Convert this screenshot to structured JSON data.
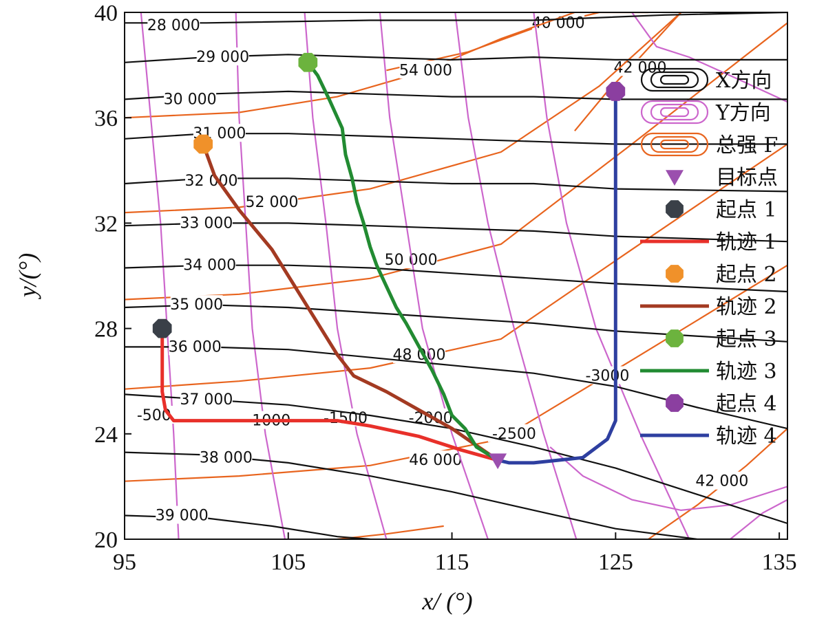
{
  "chart_data": {
    "type": "line",
    "title": "",
    "xlabel": "x/ (°)",
    "ylabel": "y/(°)",
    "xlim": [
      95,
      135.5
    ],
    "ylim": [
      20,
      40
    ],
    "xticks": [
      95,
      105,
      115,
      125,
      135
    ],
    "xtick_labels": [
      "95",
      "105",
      "115",
      "125",
      "135"
    ],
    "yticks": [
      20,
      24,
      28,
      32,
      36,
      40
    ],
    "ytick_labels": [
      "20",
      "24",
      "28",
      "32",
      "36",
      "40"
    ],
    "grid": false,
    "legend_position": "right",
    "legend": [
      {
        "label": "X方向",
        "kind": "contour",
        "color": "#111111"
      },
      {
        "label": "Y方向",
        "kind": "contour",
        "color": "#cc66cc"
      },
      {
        "label": "总强 F",
        "kind": "contour",
        "color": "#e8641e"
      },
      {
        "label": "目标点",
        "kind": "triangle",
        "color": "#9b4fae"
      },
      {
        "label": "起点 1",
        "kind": "marker",
        "color": "#3a4048"
      },
      {
        "label": "轨迹 1",
        "kind": "line",
        "color": "#e8302a"
      },
      {
        "label": "起点 2",
        "kind": "marker",
        "color": "#f0912a"
      },
      {
        "label": "轨迹 2",
        "kind": "line",
        "color": "#a33a22"
      },
      {
        "label": "起点 3",
        "kind": "marker",
        "color": "#6cb33e"
      },
      {
        "label": "轨迹 3",
        "kind": "line",
        "color": "#228b32"
      },
      {
        "label": "起点 4",
        "kind": "marker",
        "color": "#8b3fa0"
      },
      {
        "label": "轨迹 4",
        "kind": "line",
        "color": "#2e3fa0"
      }
    ],
    "target_point": {
      "x": 117.8,
      "y": 23.0
    },
    "start_points": [
      {
        "name": "起点 1",
        "x": 97.3,
        "y": 28.0,
        "color": "#3a4048"
      },
      {
        "name": "起点 2",
        "x": 99.8,
        "y": 35.0,
        "color": "#f0912a"
      },
      {
        "name": "起点 3",
        "x": 106.2,
        "y": 38.1,
        "color": "#6cb33e"
      },
      {
        "name": "起点 4",
        "x": 125.0,
        "y": 37.0,
        "color": "#8b3fa0"
      }
    ],
    "trajectories": [
      {
        "name": "轨迹 1",
        "color": "#e8302a",
        "x": [
          97.3,
          97.3,
          97.5,
          98.0,
          108.0,
          110.0,
          113.0,
          115.5,
          117.8
        ],
        "y": [
          28.0,
          25.6,
          24.9,
          24.5,
          24.5,
          24.3,
          23.9,
          23.4,
          23.0
        ]
      },
      {
        "name": "轨迹 2",
        "color": "#a33a22",
        "x": [
          99.8,
          100.5,
          102.0,
          104.0,
          106.0,
          108.0,
          109.0,
          111.0,
          113.0,
          115.0,
          117.8
        ],
        "y": [
          35.0,
          33.8,
          32.5,
          31.0,
          29.0,
          27.0,
          26.2,
          25.6,
          24.9,
          24.2,
          23.0
        ]
      },
      {
        "name": "轨迹 3",
        "color": "#228b32",
        "x": [
          106.2,
          106.8,
          107.5,
          108.3,
          108.5,
          108.9,
          109.2,
          109.6,
          110.0,
          110.4,
          111.0,
          111.6,
          112.2,
          113.0,
          113.8,
          114.5,
          115.0,
          115.8,
          116.5,
          117.8
        ],
        "y": [
          38.1,
          37.6,
          36.7,
          35.6,
          34.6,
          33.7,
          32.8,
          32.0,
          31.1,
          30.4,
          29.6,
          28.8,
          28.2,
          27.3,
          26.4,
          25.5,
          24.7,
          24.2,
          23.5,
          23.0
        ]
      },
      {
        "name": "轨迹 4",
        "color": "#2e3fa0",
        "x": [
          125.0,
          125.0,
          125.0,
          124.5,
          123.0,
          121.5,
          120.0,
          118.5,
          117.8
        ],
        "y": [
          37.0,
          30.0,
          24.5,
          23.8,
          23.1,
          23.0,
          22.9,
          22.9,
          23.0
        ]
      }
    ],
    "x_contours": [
      {
        "label": "28 000",
        "level": 28000,
        "label_at": {
          "x": 98.0,
          "y": 39.5
        },
        "x": [
          95,
          100,
          110,
          120,
          128,
          135.5
        ],
        "y": [
          39.6,
          39.6,
          39.7,
          39.7,
          39.9,
          40.0
        ]
      },
      {
        "label": "29 000",
        "level": 29000,
        "label_at": {
          "x": 101.0,
          "y": 38.3
        },
        "x": [
          95,
          100,
          105,
          110,
          115,
          120,
          125,
          135.5
        ],
        "y": [
          38.1,
          38.3,
          38.4,
          38.3,
          38.2,
          38.3,
          38.2,
          38.2
        ]
      },
      {
        "label": "30 000",
        "level": 30000,
        "label_at": {
          "x": 99.0,
          "y": 36.7
        },
        "x": [
          95,
          100,
          105,
          110,
          115,
          120,
          125,
          135.5
        ],
        "y": [
          36.7,
          36.9,
          37.0,
          36.9,
          36.8,
          36.8,
          36.7,
          36.7
        ]
      },
      {
        "label": "31 000",
        "level": 31000,
        "label_at": {
          "x": 100.8,
          "y": 35.4
        },
        "x": [
          95,
          100,
          105,
          110,
          115,
          120,
          125,
          135.5
        ],
        "y": [
          35.2,
          35.4,
          35.4,
          35.3,
          35.2,
          35.1,
          35.0,
          35.0
        ]
      },
      {
        "label": "32 000",
        "level": 32000,
        "label_at": {
          "x": 100.3,
          "y": 33.6
        },
        "x": [
          95,
          100,
          105,
          110,
          115,
          120,
          125,
          135.5
        ],
        "y": [
          33.5,
          33.7,
          33.7,
          33.6,
          33.5,
          33.5,
          33.3,
          33.2
        ]
      },
      {
        "label": "33 000",
        "level": 33000,
        "label_at": {
          "x": 100.0,
          "y": 32.0
        },
        "x": [
          95,
          100,
          105,
          110,
          115,
          120,
          125,
          135.5
        ],
        "y": [
          31.9,
          32.0,
          32.0,
          31.9,
          31.8,
          31.7,
          31.5,
          31.3
        ]
      },
      {
        "label": "34 000",
        "level": 34000,
        "label_at": {
          "x": 100.2,
          "y": 30.4
        },
        "x": [
          95,
          100,
          105,
          110,
          115,
          120,
          125,
          135.5
        ],
        "y": [
          30.3,
          30.4,
          30.4,
          30.3,
          30.1,
          29.9,
          29.7,
          29.4
        ]
      },
      {
        "label": "35 000",
        "level": 35000,
        "label_at": {
          "x": 99.4,
          "y": 28.9
        },
        "x": [
          95,
          100,
          105,
          110,
          115,
          120,
          125,
          135.5
        ],
        "y": [
          28.8,
          28.9,
          28.8,
          28.6,
          28.4,
          28.2,
          27.9,
          27.5
        ]
      },
      {
        "label": "36 000",
        "level": 36000,
        "label_at": {
          "x": 99.3,
          "y": 27.3
        },
        "x": [
          95,
          100,
          105,
          110,
          115,
          120,
          125,
          130,
          135.5
        ],
        "y": [
          27.3,
          27.3,
          27.2,
          26.9,
          26.6,
          26.3,
          25.8,
          25.0,
          24.2
        ]
      },
      {
        "label": "37 000",
        "level": 37000,
        "label_at": {
          "x": 100.0,
          "y": 25.3
        },
        "x": [
          95,
          100,
          105,
          110,
          115,
          120,
          125,
          130,
          135.5
        ],
        "y": [
          25.5,
          25.3,
          25.1,
          24.7,
          24.2,
          23.5,
          22.7,
          21.7,
          20.6
        ]
      },
      {
        "label": "38 000",
        "level": 38000,
        "label_at": {
          "x": 101.2,
          "y": 23.1
        },
        "x": [
          95,
          100,
          105,
          110,
          115,
          120,
          125,
          130,
          133
        ],
        "y": [
          23.3,
          23.2,
          22.9,
          22.4,
          21.8,
          21.1,
          20.4,
          20.0,
          20.0
        ]
      },
      {
        "label": "39 000",
        "level": 39000,
        "label_at": {
          "x": 98.5,
          "y": 20.9
        },
        "x": [
          95,
          100,
          104,
          108,
          110
        ],
        "y": [
          20.9,
          20.8,
          20.5,
          20.1,
          20.0
        ]
      }
    ],
    "y_contours": [
      {
        "label": "-500",
        "label_at": {
          "x": 96.8,
          "y": 24.7
        },
        "x": [
          96.0,
          96.6,
          97.2,
          97.6,
          98.0,
          98.3
        ],
        "y": [
          40,
          36,
          32,
          28,
          24,
          20
        ]
      },
      {
        "label": "-1000",
        "label_at": {
          "x": 103.8,
          "y": 24.5
        },
        "x": [
          101.8,
          102.0,
          102.4,
          102.8,
          103.6,
          104.8
        ],
        "y": [
          40,
          36,
          32,
          28,
          24,
          20
        ]
      },
      {
        "label": "-1500",
        "label_at": {
          "x": 108.5,
          "y": 24.6
        },
        "x": [
          106.0,
          106.5,
          107.3,
          108.0,
          109.2,
          111.0
        ],
        "y": [
          40,
          36,
          32,
          28,
          24,
          20
        ]
      },
      {
        "label": "-2000",
        "label_at": {
          "x": 113.7,
          "y": 24.6
        },
        "x": [
          110.6,
          111.2,
          112.2,
          113.2,
          115.0,
          117.2
        ],
        "y": [
          40,
          36,
          32,
          28,
          24,
          20
        ]
      },
      {
        "label": "-2500",
        "label_at": {
          "x": 118.8,
          "y": 24.0
        },
        "x": [
          115.2,
          116.0,
          117.2,
          118.8,
          120.6,
          122.6
        ],
        "y": [
          40,
          36,
          32,
          28,
          24,
          20
        ]
      },
      {
        "label": "-3000",
        "label_at": {
          "x": 124.5,
          "y": 26.2
        },
        "x": [
          120.0,
          120.8,
          122.0,
          123.8,
          126.5,
          129.5
        ],
        "y": [
          40,
          36,
          32,
          28,
          24,
          20
        ]
      },
      {
        "label": "",
        "label_at": null,
        "x": [
          126.0,
          127.5,
          129.5,
          132.0,
          135.5
        ],
        "y": [
          40,
          38.7,
          38.3,
          37.6,
          36.6
        ]
      },
      {
        "label": "",
        "label_at": null,
        "x": [
          121.0,
          123.0,
          126.0,
          129.0,
          132.0,
          135.5
        ],
        "y": [
          23.5,
          22.4,
          21.5,
          21.1,
          21.3,
          22.0
        ]
      },
      {
        "label": "",
        "label_at": null,
        "x": [
          132.0,
          134.0,
          135.5
        ],
        "y": [
          20.0,
          21.0,
          21.5
        ]
      }
    ],
    "f_contours": [
      {
        "label": "40 000",
        "label_at": {
          "x": 121.5,
          "y": 39.6
        },
        "x": [
          111.0,
          116.0,
          120.0,
          124.0,
          127.0
        ],
        "y": [
          37.8,
          38.5,
          39.4,
          40.0,
          40.0
        ]
      },
      {
        "label": "42 000",
        "label_at": {
          "x": 131.5,
          "y": 22.2
        },
        "x": [
          127.0,
          130.0,
          133.0,
          135.5
        ],
        "y": [
          20.0,
          21.3,
          22.8,
          24.2
        ]
      },
      {
        "label": "42 000",
        "label_at": {
          "x": 126.5,
          "y": 37.9
        },
        "x": [
          122.5,
          124.5,
          126.5,
          129.0
        ],
        "y": [
          35.5,
          37.0,
          38.3,
          40.0
        ]
      },
      {
        "label": "46 000",
        "label_at": {
          "x": 114.0,
          "y": 23.0
        },
        "x": [
          95.0,
          102.0,
          110.0,
          118.0,
          126.0,
          135.5
        ],
        "y": [
          22.2,
          22.4,
          22.8,
          23.8,
          26.8,
          30.4
        ]
      },
      {
        "label": "48 000",
        "label_at": {
          "x": 113.0,
          "y": 27.0
        },
        "x": [
          95.0,
          102.0,
          110.0,
          118.0,
          126.0,
          135.5
        ],
        "y": [
          25.7,
          26.0,
          26.5,
          27.6,
          31.0,
          35.0
        ]
      },
      {
        "label": "50 000",
        "label_at": {
          "x": 112.5,
          "y": 30.6
        },
        "x": [
          95.0,
          102.0,
          110.0,
          118.0,
          126.0,
          135.5
        ],
        "y": [
          29.1,
          29.3,
          29.9,
          31.2,
          35.0,
          39.6
        ]
      },
      {
        "label": "52 000",
        "label_at": {
          "x": 104.0,
          "y": 32.8
        },
        "x": [
          95.0,
          102.0,
          110.0,
          118.0,
          124.0,
          129.0
        ],
        "y": [
          32.4,
          32.6,
          33.3,
          34.7,
          37.2,
          40.0
        ]
      },
      {
        "label": "54 000",
        "label_at": {
          "x": 113.4,
          "y": 37.8
        },
        "x": [
          95.0,
          102.0,
          108.0,
          113.0,
          118.0,
          122.5
        ],
        "y": [
          36.0,
          36.2,
          36.8,
          37.7,
          39.0,
          40.0
        ]
      },
      {
        "label": "",
        "label_at": null,
        "x": [
          108.0,
          111.0,
          114.5
        ],
        "y": [
          20.0,
          20.2,
          20.5
        ]
      }
    ]
  }
}
